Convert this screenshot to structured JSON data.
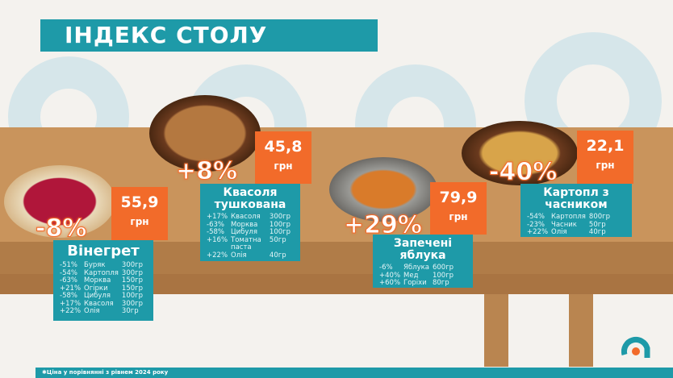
{
  "title": "ІНДЕКС СТОЛУ",
  "footer": "✱Ціна у порівнянні з рівнем 2024 року",
  "colors": {
    "accent": "#1e9aa8",
    "price": "#f26b2a",
    "table": "#c9945c"
  },
  "dishes": [
    {
      "name": "Вінегрет",
      "change": "-8%",
      "price": "55,9",
      "unit": "грн",
      "ingredients": [
        {
          "pct": "-51%",
          "name": "Буряк",
          "qty": "300гр"
        },
        {
          "pct": "-54%",
          "name": "Картопля",
          "qty": "300гр"
        },
        {
          "pct": "-63%",
          "name": "Морква",
          "qty": "150гр"
        },
        {
          "pct": "+21%",
          "name": "Огірки",
          "qty": "150гр"
        },
        {
          "pct": "-58%",
          "name": "Цибуля",
          "qty": "100гр"
        },
        {
          "pct": "+17%",
          "name": "Квасоля",
          "qty": "300гр"
        },
        {
          "pct": "+22%",
          "name": "Олія",
          "qty": "30гр"
        }
      ]
    },
    {
      "name": "Квасоля тушкована",
      "change": "+8%",
      "price": "45,8",
      "unit": "грн",
      "ingredients": [
        {
          "pct": "+17%",
          "name": "Квасоля",
          "qty": "300гр"
        },
        {
          "pct": "-63%",
          "name": "Морква",
          "qty": "100гр"
        },
        {
          "pct": "-58%",
          "name": "Цибуля",
          "qty": "100гр"
        },
        {
          "pct": "+16%",
          "name": "Томатна паста",
          "qty": "50гр"
        },
        {
          "pct": "+22%",
          "name": "Олія",
          "qty": "40гр"
        }
      ]
    },
    {
      "name": "Запечені яблука",
      "change": "+29%",
      "price": "79,9",
      "unit": "грн",
      "ingredients": [
        {
          "pct": "-6%",
          "name": "Яблука",
          "qty": "600гр"
        },
        {
          "pct": "+40%",
          "name": "Мед",
          "qty": "100гр"
        },
        {
          "pct": "+60%",
          "name": "Горіхи",
          "qty": "80гр"
        }
      ]
    },
    {
      "name": "Картопл з часником",
      "change": "-40%",
      "price": "22,1",
      "unit": "грн",
      "ingredients": [
        {
          "pct": "-54%",
          "name": "Картопля",
          "qty": "800гр"
        },
        {
          "pct": "-23%",
          "name": "Часник",
          "qty": "50гр"
        },
        {
          "pct": "+22%",
          "name": "Олія",
          "qty": "40гр"
        }
      ]
    }
  ]
}
